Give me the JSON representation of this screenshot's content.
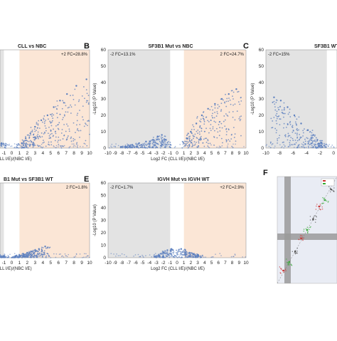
{
  "figure": {
    "panels": [
      {
        "letter": "",
        "title": "CLL vs NBC",
        "fc_left": "",
        "fc_right": "+2 FC=28.8%",
        "xlabel": "g2 FC (CLL I/E)/(NBC I/E)",
        "ylabel": "",
        "x_tick_labels": [
          "-1",
          "0",
          "1",
          "2",
          "3",
          "4",
          "5",
          "6",
          "7",
          "8",
          "9",
          "10"
        ],
        "y_tick_labels": []
      },
      {
        "letter": "B",
        "title": "SF3B1 Mut vs NBC",
        "fc_left": "-2 FC=13.1%",
        "fc_right": "2 FC=24.7%",
        "xlabel": "Log2 FC (CLL I/E)/(NBC I/E)",
        "ylabel": "-Log10 (P Value)",
        "x_tick_labels": [
          "-10",
          "-9",
          "-8",
          "-7",
          "-6",
          "-5",
          "-4",
          "-3",
          "-2",
          "-1",
          "0",
          "1",
          "2",
          "3",
          "4",
          "5",
          "6",
          "7",
          "8",
          "9",
          "10"
        ],
        "y_tick_labels": [
          "0",
          "10",
          "20",
          "30",
          "40",
          "50",
          "60"
        ]
      },
      {
        "letter": "C",
        "title": "SF3B1 WT",
        "fc_left": "-2 FC=15%",
        "fc_right": "",
        "xlabel": "",
        "ylabel": "-Log10 (P Value)",
        "x_tick_labels": [
          "-10",
          "-8",
          "-6",
          "-4",
          "-2",
          "0"
        ],
        "y_tick_labels": [
          "0",
          "10",
          "20",
          "30",
          "40",
          "50",
          "60"
        ]
      },
      {
        "letter": "",
        "title": "B1 Mut vs SF3B1 WT",
        "fc_left": "",
        "fc_right": "2 FC=1.8%",
        "xlabel": "g2 FC (CLL I/E)/(NBC I/E)",
        "ylabel": "",
        "x_tick_labels": [
          "-1",
          "0",
          "1",
          "2",
          "3",
          "4",
          "5",
          "6",
          "7",
          "8",
          "9",
          "10"
        ],
        "y_tick_labels": []
      },
      {
        "letter": "E",
        "title": "IGVH Mut vs IGVH WT",
        "fc_left": "-2 FC=1.7%",
        "fc_right": "+2 FC=2.9%",
        "xlabel": "Log2 FC (CLL I/E)/(NBC I/E)",
        "ylabel": "-Log10 (P Value)",
        "x_tick_labels": [
          "-10",
          "-9",
          "-8",
          "-7",
          "-6",
          "-5",
          "-4",
          "-3",
          "-2",
          "-1",
          "0",
          "1",
          "2",
          "3",
          "4",
          "5",
          "6",
          "7",
          "8",
          "9",
          "10"
        ],
        "y_tick_labels": [
          "0",
          "10",
          "20",
          "30",
          "40",
          "50",
          "60"
        ]
      },
      {
        "letter": "F",
        "title": "",
        "fc_left": "",
        "fc_right": "",
        "xlabel": "",
        "ylabel": "",
        "x_tick_labels": [],
        "y_tick_labels": []
      }
    ]
  },
  "colors": {
    "points": "#5b7fbf",
    "left_shade": "#e3e3e3",
    "right_shade": "#fbe6d6",
    "scatter_bg": "#e9ecf4",
    "scatter_band": "#9a9a9a",
    "scatter_red": "#cc3333",
    "scatter_green": "#33aa33"
  },
  "chart_data": [
    {
      "type": "scatter",
      "panel": "A",
      "title": "CLL vs NBC",
      "xlim": [
        -10,
        10
      ],
      "ylim": [
        0,
        60
      ],
      "fold_change_labels": {
        "up": "+2 FC=28.8%"
      },
      "series": [
        {
          "x": [
            -3.5,
            -3.0,
            -2.6,
            -2.2,
            -1.8,
            -1.3,
            1.3,
            1.8,
            2.4,
            3.0,
            3.8,
            4.6,
            5.4,
            6.2,
            7.1,
            8.3,
            9.6
          ],
          "y": [
            16,
            12,
            9,
            7,
            5,
            3,
            3,
            6,
            9,
            13,
            17,
            20,
            25,
            29,
            33,
            38,
            42
          ]
        }
      ]
    },
    {
      "type": "scatter",
      "panel": "B",
      "title": "SF3B1 Mut vs NBC",
      "xlim": [
        -10,
        10
      ],
      "ylim": [
        0,
        60
      ],
      "fold_change_labels": {
        "down": "-2 FC=13.1%",
        "up": "2 FC=24.7%"
      },
      "series": [
        {
          "x": [
            -7.5,
            -6.5,
            -5.5,
            -4.5,
            -3.5,
            -2.8,
            -2.2,
            -1.6,
            1.4,
            2.0,
            2.8,
            3.6,
            4.5,
            5.5,
            6.5,
            7.5,
            8.6
          ],
          "y": [
            1,
            2,
            3,
            4,
            5,
            7,
            8,
            5,
            6,
            10,
            15,
            20,
            24,
            27,
            30,
            33,
            36
          ]
        }
      ]
    },
    {
      "type": "scatter",
      "panel": "C",
      "title": "SF3B1 WT",
      "xlim": [
        -10,
        10
      ],
      "ylim": [
        0,
        60
      ],
      "fold_change_labels": {
        "down": "-2 FC=15%"
      },
      "series": [
        {
          "x": [
            -8.8,
            -7.8,
            -6.8,
            -5.8,
            -4.8,
            -3.8,
            -3.0,
            -2.4,
            -1.8
          ],
          "y": [
            31,
            29,
            25,
            20,
            15,
            11,
            8,
            5,
            3
          ]
        }
      ]
    },
    {
      "type": "scatter",
      "panel": "D",
      "title": "B1 Mut vs SF3B1 WT",
      "xlim": [
        -10,
        10
      ],
      "ylim": [
        0,
        60
      ],
      "fold_change_labels": {
        "up": "2 FC=1.8%"
      },
      "series": [
        {
          "x": [
            -2.0,
            -1.5,
            -1.0,
            0.5,
            1.0,
            1.5,
            2.0,
            2.5,
            3.0,
            3.5,
            4.3
          ],
          "y": [
            1,
            2,
            1,
            1,
            2,
            3,
            4,
            5,
            6,
            7,
            9
          ]
        }
      ]
    },
    {
      "type": "scatter",
      "panel": "E",
      "title": "IGVH Mut vs IGVH WT",
      "xlim": [
        -10,
        10
      ],
      "ylim": [
        0,
        60
      ],
      "fold_change_labels": {
        "down": "-2 FC=1.7%",
        "up": "+2 FC=2.9%"
      },
      "series": [
        {
          "x": [
            -2.6,
            -2.0,
            -1.4,
            -0.8,
            0.6,
            1.2,
            1.8,
            2.4,
            3.0
          ],
          "y": [
            2,
            4,
            6,
            7,
            7,
            6,
            4,
            3,
            2
          ]
        }
      ]
    },
    {
      "type": "scatter",
      "panel": "F",
      "title": "",
      "xlim": [
        0,
        1
      ],
      "ylim": [
        0,
        1
      ],
      "series": [
        {
          "x": [
            0.1,
            0.2,
            0.3,
            0.4,
            0.5,
            0.6,
            0.7,
            0.8,
            0.9
          ],
          "y": [
            0.12,
            0.2,
            0.3,
            0.42,
            0.5,
            0.6,
            0.72,
            0.78,
            0.88
          ]
        }
      ]
    }
  ]
}
